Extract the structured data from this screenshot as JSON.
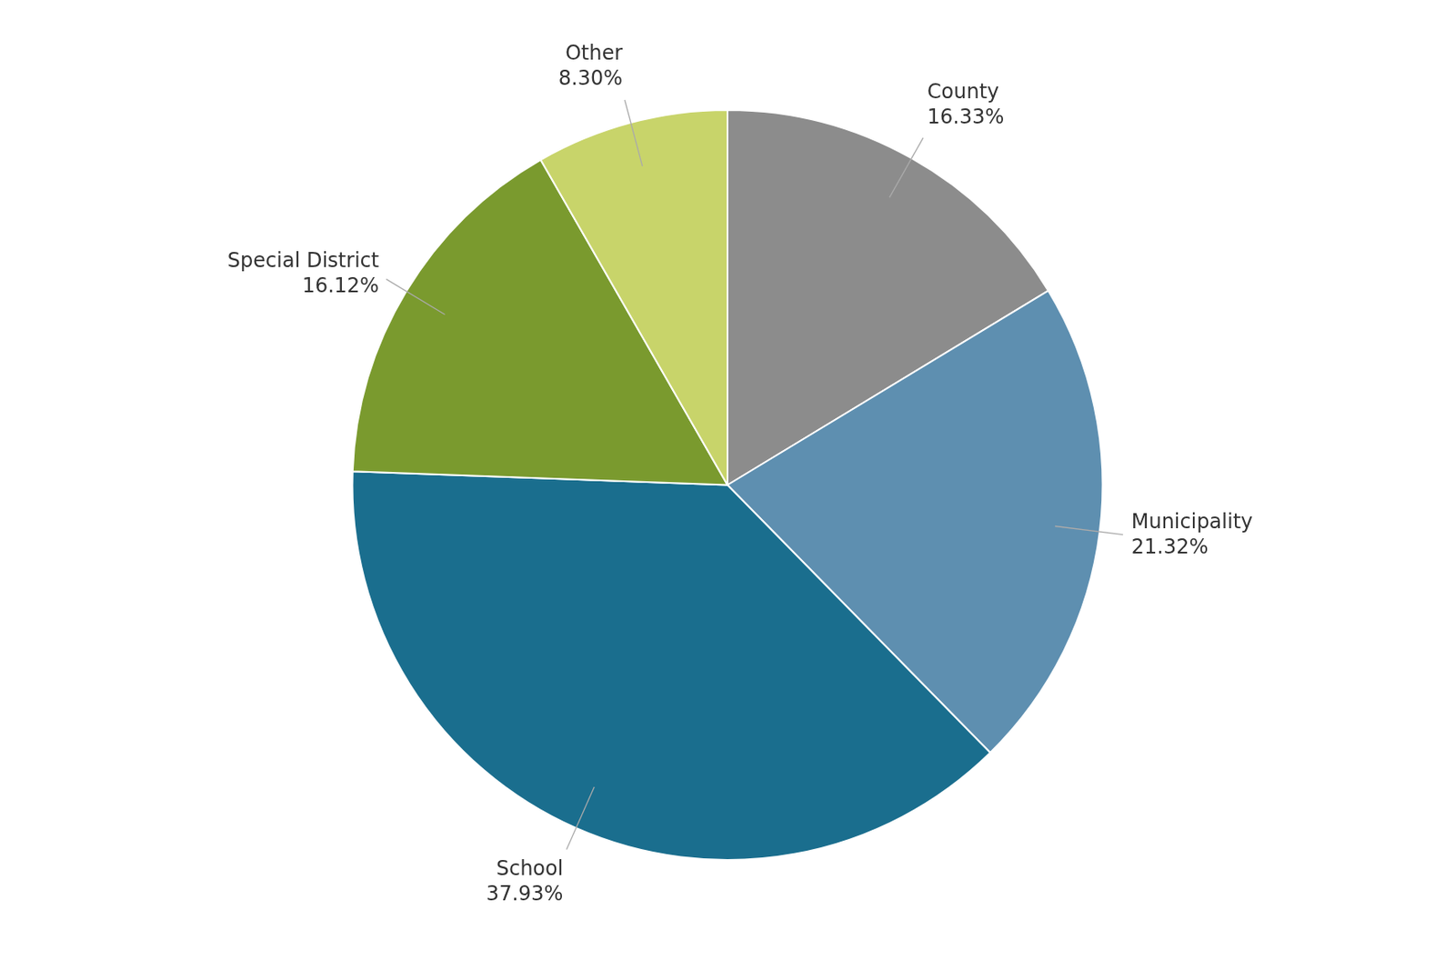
{
  "chart_data": {
    "type": "pie",
    "categories": [
      "County",
      "Municipality",
      "School",
      "Special District",
      "Other"
    ],
    "values": [
      16.33,
      21.32,
      37.93,
      16.12,
      8.3
    ],
    "value_labels": [
      "16.33%",
      "21.32%",
      "37.93%",
      "16.12%",
      "8.30%"
    ],
    "colors": [
      "#8c8c8c",
      "#5e8fb0",
      "#1a6e8e",
      "#7a9a2e",
      "#c8d46a"
    ],
    "data_labels": true
  }
}
